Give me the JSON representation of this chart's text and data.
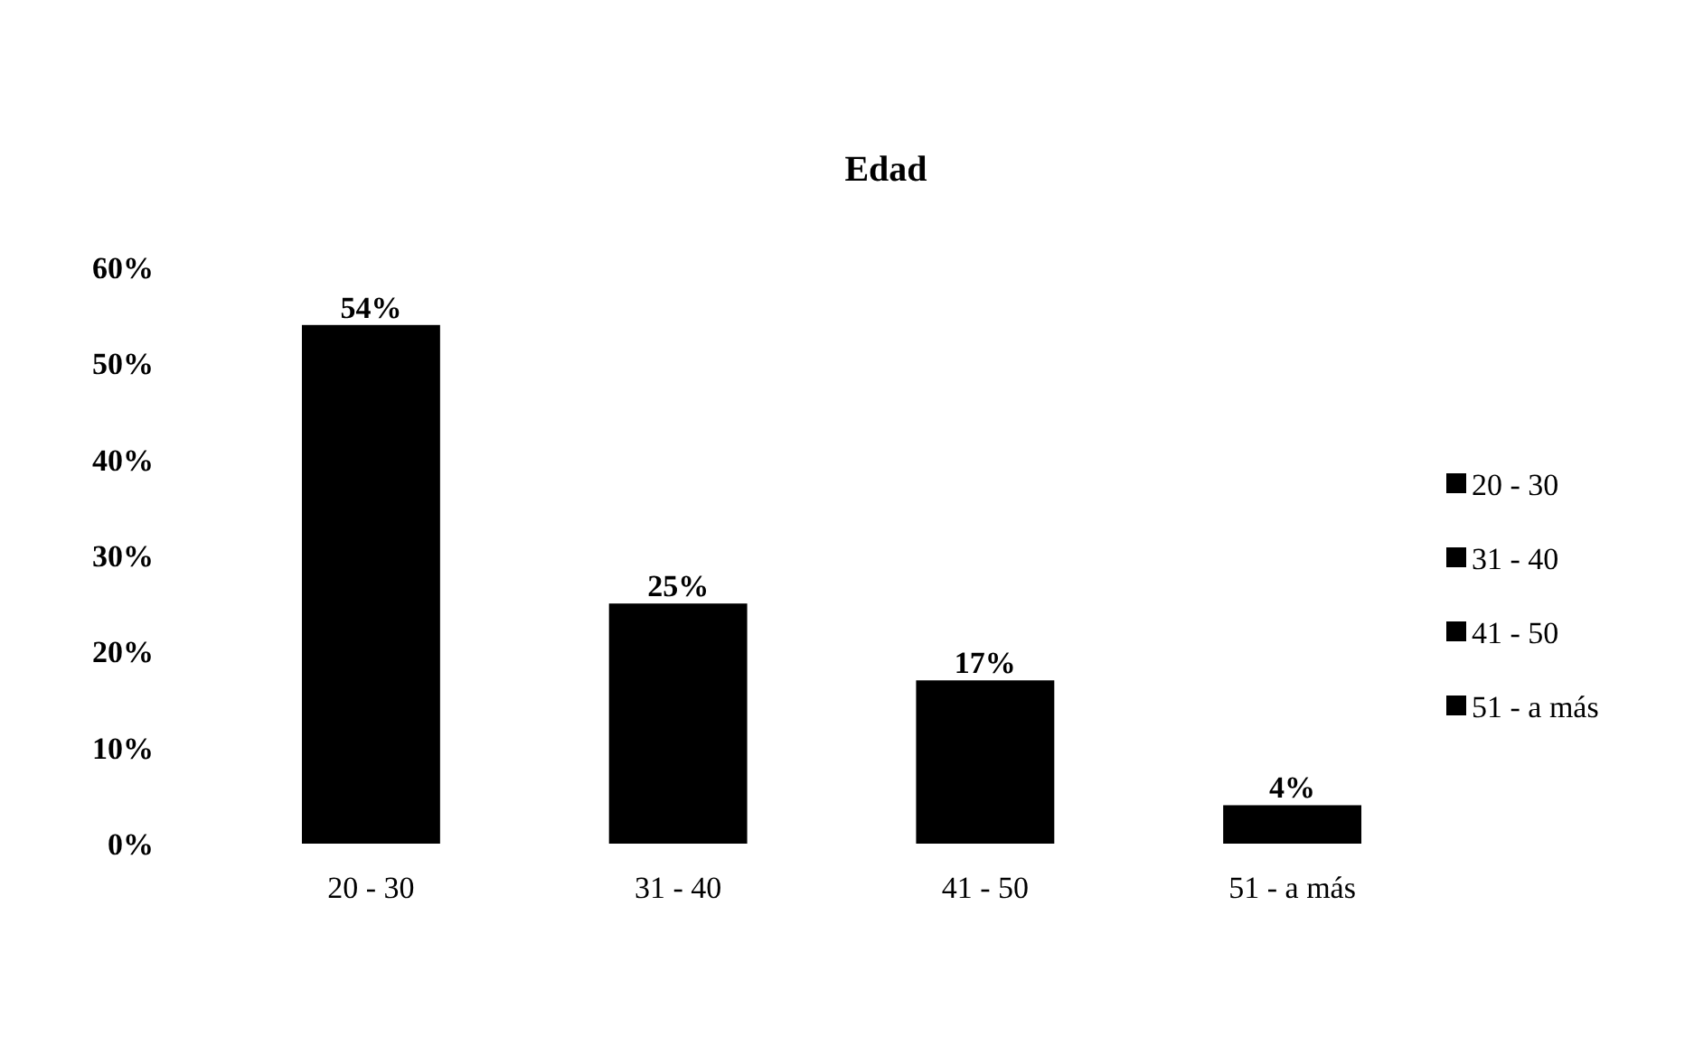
{
  "chart_data": {
    "type": "bar",
    "title": "Edad",
    "categories": [
      "20 - 30",
      "31 - 40",
      "41 - 50",
      "51 - a más"
    ],
    "stacked": true,
    "series": [
      {
        "name": "20 - 30",
        "color": "#000000",
        "values": [
          54,
          null,
          null,
          null
        ],
        "value_labels": [
          "54%",
          null,
          null,
          null
        ]
      },
      {
        "name": "31 - 40",
        "color": "#000000",
        "values": [
          null,
          25,
          null,
          null
        ],
        "value_labels": [
          null,
          "25%",
          null,
          null
        ]
      },
      {
        "name": "41 - 50",
        "color": "#000000",
        "values": [
          null,
          null,
          17,
          null
        ],
        "value_labels": [
          null,
          null,
          "17%",
          null
        ]
      },
      {
        "name": "51 - a más",
        "color": "#000000",
        "values": [
          null,
          null,
          null,
          4
        ],
        "value_labels": [
          null,
          null,
          null,
          "4%"
        ]
      }
    ],
    "ylim": [
      0,
      60
    ],
    "yticks": [
      {
        "value": 0,
        "label": "0%"
      },
      {
        "value": 10,
        "label": "10%"
      },
      {
        "value": 20,
        "label": "20%"
      },
      {
        "value": 30,
        "label": "30%"
      },
      {
        "value": 40,
        "label": "40%"
      },
      {
        "value": 50,
        "label": "50%"
      },
      {
        "value": 60,
        "label": "60%"
      }
    ],
    "legend": "right"
  }
}
